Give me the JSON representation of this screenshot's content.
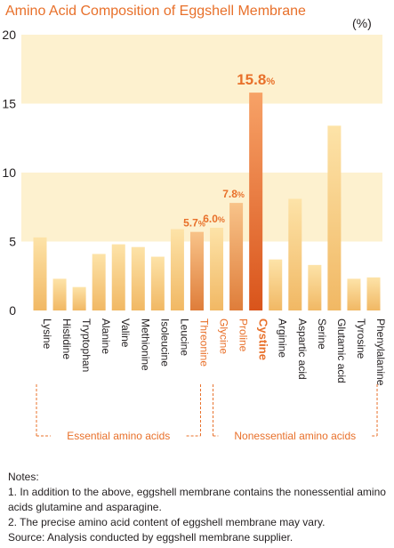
{
  "title": "Amino Acid Composition of Eggshell Membrane",
  "unit_label": "(%)",
  "colors": {
    "title": "#e8702a",
    "band": "#fdf1cf",
    "bar_light_top": "#fde3a8",
    "bar_light_bottom": "#f1b864",
    "bar_mid_top": "#f8c389",
    "bar_mid_bottom": "#df7d3a",
    "bar_highlight_top": "#f7a267",
    "bar_highlight_bottom": "#d9541b",
    "accent_text": "#e8702a",
    "bracket": "#e8702a"
  },
  "chart_data": {
    "type": "bar",
    "ylim": [
      0,
      20
    ],
    "yticks": [
      "0",
      "5",
      "10",
      "15",
      "20"
    ],
    "bands": [
      [
        5,
        10
      ],
      [
        15,
        20
      ]
    ],
    "categories": [
      "Lysine",
      "Histidine",
      "Tryptophan",
      "Alanine",
      "Valine",
      "Methionine",
      "Isoleucine",
      "Leucine",
      "Threonine",
      "Glycine",
      "Proline",
      "Cystine",
      "Arginine",
      "Aspartic acid",
      "Serine",
      "Glutamic acid",
      "Tyrosine",
      "Phenylalanine"
    ],
    "values": [
      5.3,
      2.3,
      1.7,
      4.1,
      4.8,
      4.6,
      3.9,
      5.9,
      5.7,
      6.0,
      7.8,
      15.8,
      3.7,
      8.1,
      3.3,
      13.4,
      2.3,
      2.4
    ],
    "styles": [
      "light",
      "light",
      "light",
      "light",
      "light",
      "light",
      "light",
      "light",
      "mid",
      "light",
      "mid",
      "highlight",
      "light",
      "light",
      "light",
      "light",
      "light",
      "light"
    ],
    "accent_labels": [
      false,
      false,
      false,
      false,
      false,
      false,
      false,
      false,
      true,
      true,
      true,
      true,
      false,
      false,
      false,
      false,
      false,
      false
    ],
    "value_labels": [
      {
        "index": 8,
        "value": "5.7",
        "suffix": "%"
      },
      {
        "index": 9,
        "value": "6.0",
        "suffix": "%"
      },
      {
        "index": 10,
        "value": "7.8",
        "suffix": "%"
      },
      {
        "index": 11,
        "value": "15.8",
        "suffix": "%"
      }
    ],
    "groups": [
      {
        "label": "Essential amino acids",
        "from": 0,
        "to": 8
      },
      {
        "label": "Nonessential amino acids",
        "from": 9,
        "to": 17
      }
    ]
  },
  "notes": {
    "heading": "Notes:",
    "lines": [
      "1. In addition to the above, eggshell membrane contains the nonessential amino acids glutamine and asparagine.",
      "2. The precise amino acid content of eggshell membrane may vary.",
      "Source: Analysis conducted by eggshell membrane supplier."
    ]
  }
}
